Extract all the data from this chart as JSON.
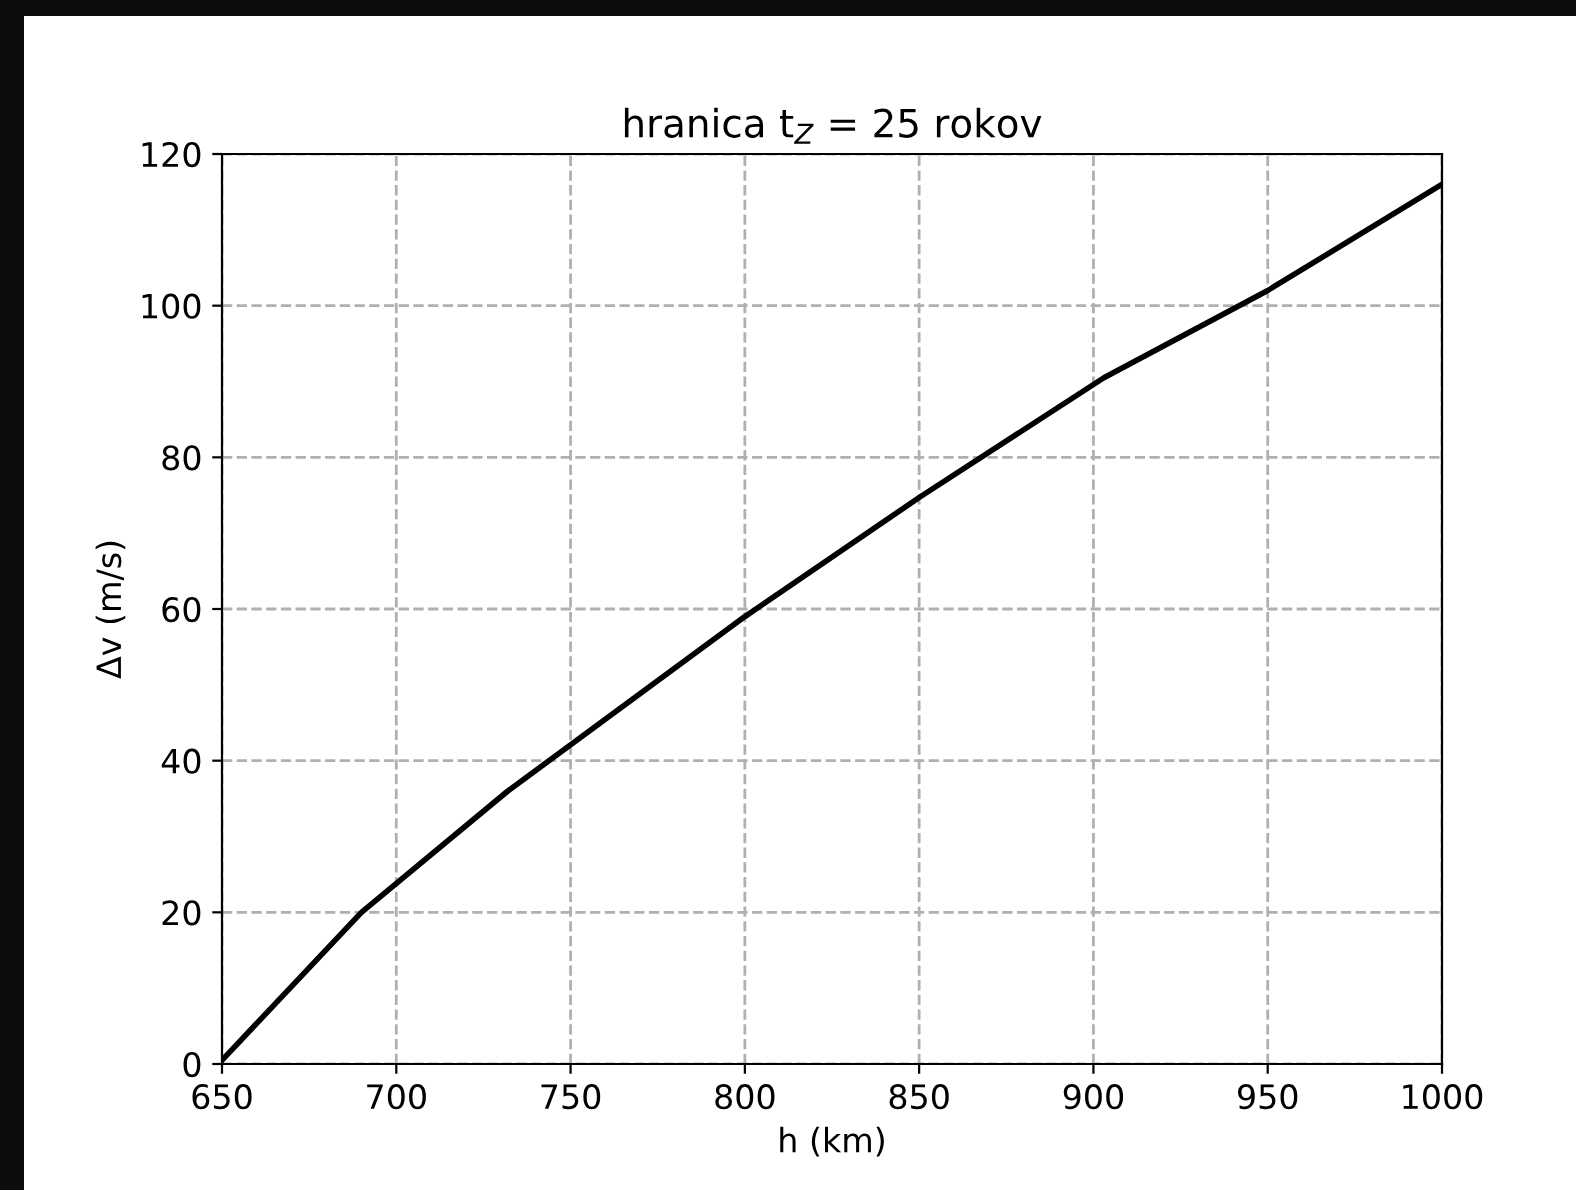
{
  "chart_data": {
    "type": "line",
    "title": "hranica t$_{Z}$ = 25 rokov",
    "xlabel": "h (km)",
    "ylabel": "Δv (m/s)",
    "x": [
      650,
      690,
      732,
      800,
      850,
      903,
      950,
      1000
    ],
    "series": [
      {
        "color": "#000000",
        "values": [
          0.5,
          20,
          36,
          59,
          74.7,
          90.5,
          102,
          116
        ]
      }
    ],
    "xlim": [
      650,
      1000
    ],
    "xticks": [
      650,
      700,
      750,
      800,
      850,
      900,
      950,
      1000
    ],
    "ylim": [
      0,
      120
    ],
    "yticks": [
      0,
      20,
      40,
      60,
      80,
      100,
      120
    ],
    "grid": true,
    "line_style": "solid"
  }
}
